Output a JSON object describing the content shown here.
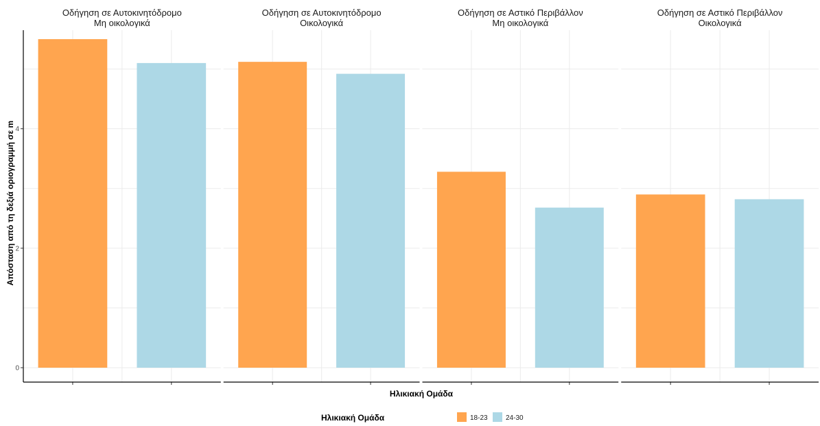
{
  "chart_data": {
    "type": "bar",
    "facets": [
      {
        "title_lines": [
          "Οδήγηση σε Αυτοκινητόδρομο",
          "Μη οικολογικά"
        ],
        "values": [
          5.5,
          5.1
        ]
      },
      {
        "title_lines": [
          "Οδήγηση σε Αυτοκινητόδρομο",
          "Οικολογικά"
        ],
        "values": [
          5.12,
          4.92
        ]
      },
      {
        "title_lines": [
          "Οδήγηση σε Αστικό Περιβάλλον",
          "Μη οικολογικά"
        ],
        "values": [
          3.28,
          2.68
        ]
      },
      {
        "title_lines": [
          "Οδήγηση σε Αστικό Περιβάλλον",
          "Οικολογικά"
        ],
        "values": [
          2.9,
          2.82
        ]
      }
    ],
    "series": [
      {
        "name": "18-23",
        "color": "#FFA54F"
      },
      {
        "name": "24-30",
        "color": "#ADD8E6"
      }
    ],
    "xlabel": "Ηλικιακή Ομάδα",
    "ylabel": "Απόσταση από τη δεξιά οριογραμμή σε m",
    "ylim": [
      0,
      5.65
    ],
    "yticks": [
      0,
      2,
      4
    ],
    "grid": true,
    "legend": {
      "title": "Ηλικιακή Ομάδα",
      "position": "bottom"
    }
  }
}
